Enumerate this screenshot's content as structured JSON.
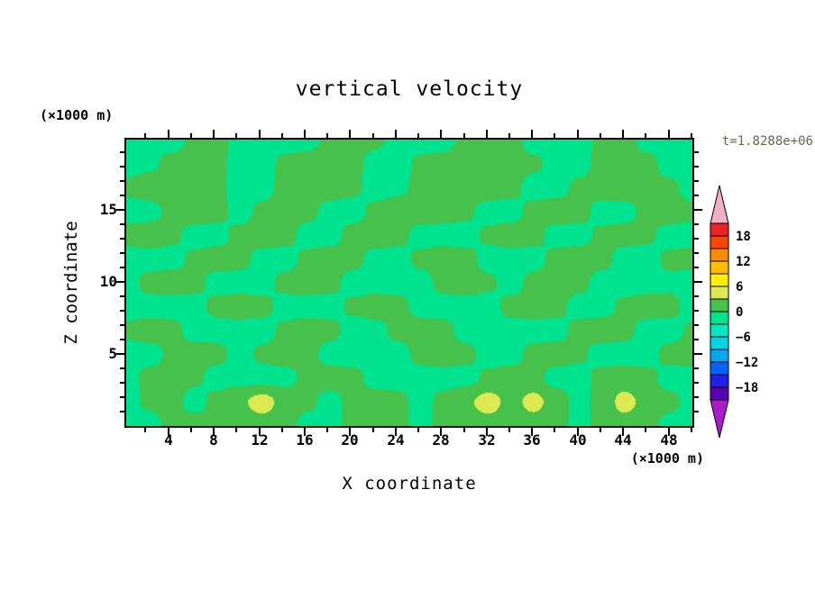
{
  "chart_data": {
    "type": "heatmap",
    "subtype": "filled-contour",
    "title": "vertical velocity",
    "xlabel": "X coordinate",
    "ylabel": "Z coordinate",
    "x_unit_label": "(×1000 m)",
    "y_unit_label": "(×1000 m)",
    "timestamp": "t=1.8288e+06",
    "xlim": [
      0.3,
      50.1
    ],
    "ylim": [
      0,
      19.9
    ],
    "x_major_ticks": [
      4,
      8,
      12,
      16,
      20,
      24,
      28,
      32,
      36,
      40,
      44,
      48
    ],
    "x_minor_step": 2,
    "y_major_ticks": [
      5,
      10,
      15
    ],
    "y_minor_step": 1,
    "grid": false,
    "legend_position": "right-colorbar",
    "colorbar": {
      "position": "right",
      "contour_interval": 3,
      "levels": [
        -21,
        -18,
        -15,
        -12,
        -9,
        -6,
        -3,
        0,
        3,
        6,
        9,
        12,
        15,
        18,
        21
      ],
      "labels": [
        "18",
        "12",
        "6",
        "0",
        "−6",
        "−12",
        "−18"
      ],
      "label_values": [
        18,
        12,
        6,
        0,
        -6,
        -12,
        -18
      ],
      "colors_ascending": [
        "#5a00b4",
        "#2020e8",
        "#0064ff",
        "#00a8f0",
        "#00d2e8",
        "#00e8c0",
        "#00e38e",
        "#46c24c",
        "#dcea52",
        "#ffee00",
        "#ffbe00",
        "#ff8c00",
        "#ff4600",
        "#ee2028"
      ],
      "under_color": "#a81ccc",
      "over_color": "#f2aec2"
    },
    "style": {
      "background": "#ffffff",
      "ink": "#000000",
      "timestamp_color": "#6e6455",
      "field_background_color": "#00e38e",
      "field_patch_color": "#46c24c",
      "field_spot_color": "#dcea52"
    },
    "field": {
      "x_range": [
        0.3,
        50.1
      ],
      "z_range": [
        0,
        19.9
      ],
      "row_order": "top-to-bottom",
      "nx": 26,
      "nz": 13,
      "values": [
        [
          -1,
          -1,
          -1,
          0.5,
          1.2,
          -1,
          -1,
          -1,
          -1,
          0.8,
          1.4,
          0.6,
          -1,
          -1,
          -1,
          0.7,
          1.4,
          1,
          -1,
          -1,
          -1,
          0.6,
          1.2,
          -1,
          -1,
          -1
        ],
        [
          -1,
          -0.5,
          0.8,
          1.3,
          0.6,
          -1,
          -1,
          0.6,
          1.2,
          1.5,
          0.8,
          -1,
          -1,
          0.5,
          1,
          1.4,
          1.6,
          1.2,
          0.5,
          -1,
          -1,
          0.8,
          1.3,
          0.9,
          -1,
          -1
        ],
        [
          0.6,
          1.3,
          1.6,
          1.2,
          0.5,
          -1,
          -1,
          0.9,
          1.5,
          1.3,
          0.5,
          -1,
          -0.5,
          0.6,
          1.2,
          1.6,
          1.4,
          0.8,
          -1,
          -1,
          0.6,
          1.3,
          1.6,
          1.3,
          0.6,
          -1
        ],
        [
          -1,
          -1,
          0.8,
          1.4,
          0.9,
          -1,
          0.6,
          1.3,
          0.8,
          -1,
          -1,
          0.6,
          1.1,
          1.5,
          1.1,
          0.5,
          -1,
          -1,
          0.8,
          1.4,
          1,
          -1,
          -1,
          0.8,
          1.3,
          0.6
        ],
        [
          0.9,
          1.4,
          0.6,
          -1,
          -1,
          0.8,
          1.4,
          0.9,
          -1,
          -1,
          0.9,
          1.4,
          0.9,
          -1,
          -1,
          -1,
          0.5,
          1.3,
          0.9,
          -1,
          -1,
          0.5,
          1,
          0.5,
          -1,
          -1
        ],
        [
          -1,
          -1,
          -1,
          0.5,
          1.3,
          0.9,
          -1,
          -1,
          0.6,
          1.3,
          0.9,
          -1,
          -1,
          0.6,
          1.3,
          0.9,
          -1,
          -1,
          -1,
          0.8,
          1.4,
          0.9,
          -1,
          -1,
          0.5,
          0.9
        ],
        [
          -1,
          0.8,
          1.3,
          0.8,
          -1,
          -1,
          -1,
          0.8,
          1.3,
          0.8,
          -1,
          -1,
          -1,
          -1,
          0.8,
          1.3,
          0.5,
          -1,
          0.8,
          1.3,
          0.8,
          -1,
          -1,
          -1,
          -0.5,
          -1
        ],
        [
          -1,
          -1,
          -1,
          -1,
          0.8,
          1.3,
          0.8,
          -1,
          -1,
          -1,
          0.5,
          1.3,
          0.9,
          -1,
          -1,
          -1,
          -1,
          0.8,
          1.3,
          0.8,
          -1,
          -1,
          0.5,
          1.2,
          0.8,
          -1
        ],
        [
          0.5,
          1.2,
          0.8,
          -1,
          -1,
          -1,
          -1,
          0.5,
          1.2,
          0.8,
          -1,
          -1,
          0.8,
          1.3,
          0.8,
          -1,
          -1,
          -1,
          -1,
          -1,
          0.8,
          1.3,
          0.8,
          -1,
          -1,
          0.4
        ],
        [
          -1,
          -1,
          0.5,
          1.2,
          0.8,
          -1,
          0.5,
          1.2,
          0.8,
          -1,
          -1,
          -1,
          -1,
          0.8,
          1.3,
          0.8,
          -1,
          -1,
          0.8,
          1.2,
          0.5,
          -1,
          -1,
          -1,
          0.8,
          1.2
        ],
        [
          -1,
          0.8,
          1.2,
          0.5,
          -1,
          -1,
          -1,
          -1,
          0.8,
          1.2,
          0.8,
          -1,
          -1,
          -1,
          -1,
          -1,
          0.5,
          1.2,
          0.8,
          -1,
          -1,
          0.8,
          1.2,
          0.8,
          -1,
          -1
        ],
        [
          -1,
          0.5,
          0.9,
          -1,
          0.8,
          2.5,
          4.2,
          2,
          0.6,
          -1,
          0.8,
          1.2,
          0.8,
          -1,
          0.8,
          2.5,
          4.2,
          2,
          4,
          1.5,
          -1,
          0.9,
          4.1,
          2,
          0.8,
          -1
        ],
        [
          -1,
          -1,
          0.8,
          1.2,
          0.9,
          1.5,
          1.8,
          1.2,
          -1,
          -1,
          0.9,
          1.3,
          0.9,
          -1,
          0.9,
          1.5,
          1.8,
          1.2,
          1.5,
          1.2,
          -1,
          1,
          1.6,
          1.2,
          -1,
          -1
        ]
      ]
    }
  }
}
